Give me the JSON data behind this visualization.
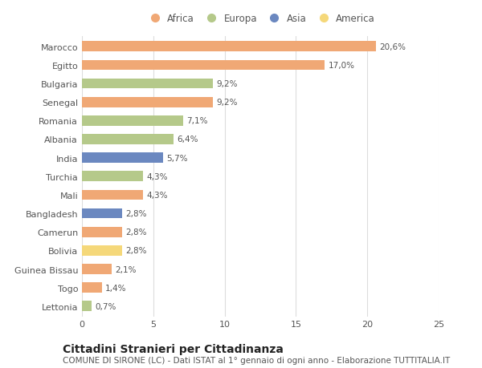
{
  "countries": [
    "Marocco",
    "Egitto",
    "Bulgaria",
    "Senegal",
    "Romania",
    "Albania",
    "India",
    "Turchia",
    "Mali",
    "Bangladesh",
    "Camerun",
    "Bolivia",
    "Guinea Bissau",
    "Togo",
    "Lettonia"
  ],
  "values": [
    20.6,
    17.0,
    9.2,
    9.2,
    7.1,
    6.4,
    5.7,
    4.3,
    4.3,
    2.8,
    2.8,
    2.8,
    2.1,
    1.4,
    0.7
  ],
  "labels": [
    "20,6%",
    "17,0%",
    "9,2%",
    "9,2%",
    "7,1%",
    "6,4%",
    "5,7%",
    "4,3%",
    "4,3%",
    "2,8%",
    "2,8%",
    "2,8%",
    "2,1%",
    "1,4%",
    "0,7%"
  ],
  "continents": [
    "Africa",
    "Africa",
    "Europa",
    "Africa",
    "Europa",
    "Europa",
    "Asia",
    "Europa",
    "Africa",
    "Asia",
    "Africa",
    "America",
    "Africa",
    "Africa",
    "Europa"
  ],
  "colors": {
    "Africa": "#F0A875",
    "Europa": "#B5C98A",
    "Asia": "#6B88C0",
    "America": "#F5D87A"
  },
  "legend_order": [
    "Africa",
    "Europa",
    "Asia",
    "America"
  ],
  "xlim": [
    0,
    25
  ],
  "xticks": [
    0,
    5,
    10,
    15,
    20,
    25
  ],
  "title": "Cittadini Stranieri per Cittadinanza",
  "subtitle": "COMUNE DI SIRONE (LC) - Dati ISTAT al 1° gennaio di ogni anno - Elaborazione TUTTITALIA.IT",
  "bg_color": "#ffffff",
  "bar_height": 0.55,
  "title_fontsize": 10,
  "subtitle_fontsize": 7.5,
  "label_fontsize": 7.5,
  "tick_fontsize": 8,
  "legend_fontsize": 8.5
}
